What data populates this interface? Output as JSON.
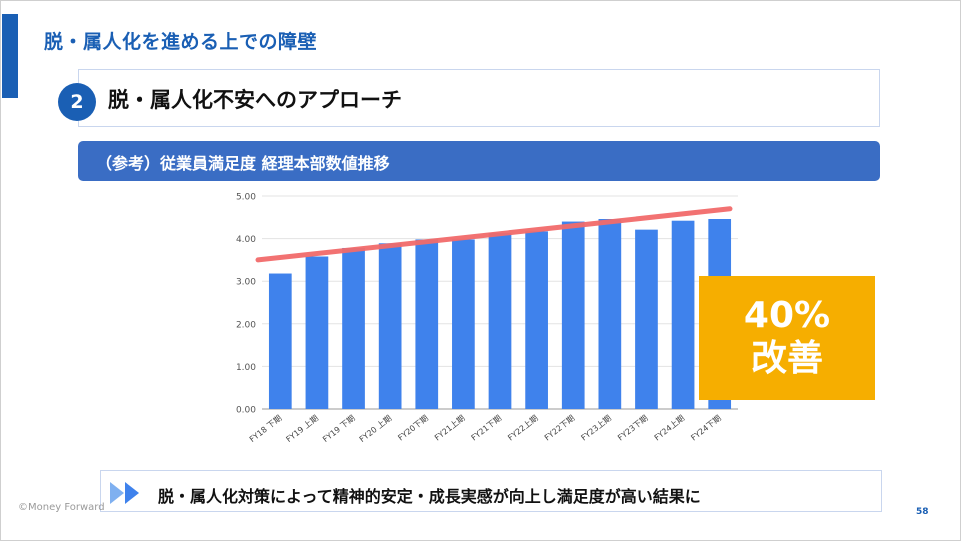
{
  "slide": {
    "title": "脱・属人化を進める上での障壁",
    "section_number": "2",
    "section_title": "脱・属人化不安へのアプローチ",
    "band_label": "（参考）従業員満足度 経理本部数値推移",
    "badge_line1": "40%",
    "badge_line2": "改善",
    "conclusion": "脱・属人化対策によって精神的安定・成長実感が向上し満足度が高い結果に",
    "copyright": "©Money Forward",
    "page_number": "58"
  },
  "colors": {
    "brand_blue": "#1a5fb4",
    "band_blue": "#3a6dc4",
    "bar_blue": "#3f82ec",
    "trend_red": "#f26b6b",
    "badge_orange": "#f6ae00"
  },
  "chart_data": {
    "type": "bar",
    "categories": [
      "FY18 下期",
      "FY19 上期",
      "FY19 下期",
      "FY20 上期",
      "FY20下期",
      "FY21上期",
      "FY21下期",
      "FY22上期",
      "FY22下期",
      "FY23上期",
      "FY23下期",
      "FY24上期",
      "FY24下期"
    ],
    "values": [
      3.18,
      3.58,
      3.78,
      3.89,
      3.98,
      3.98,
      4.13,
      4.17,
      4.4,
      4.46,
      4.21,
      4.42,
      4.46
    ],
    "ylim": [
      0,
      5
    ],
    "yticks": [
      "0.00",
      "1.00",
      "2.00",
      "3.00",
      "4.00",
      "5.00"
    ],
    "trend_line": {
      "start": 3.5,
      "end": 4.7
    },
    "grid": true,
    "legend": "none"
  }
}
